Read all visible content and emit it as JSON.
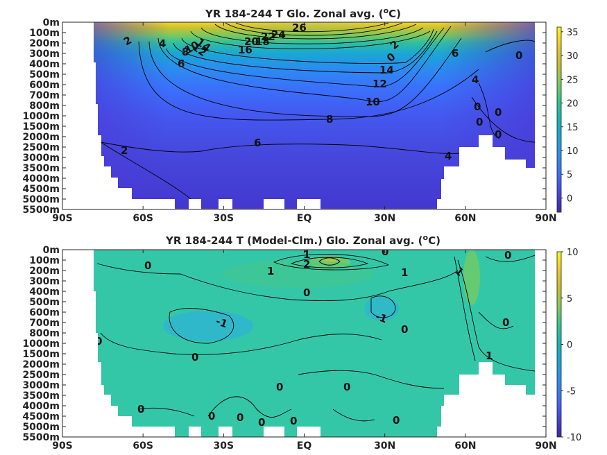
{
  "chart_data": [
    {
      "type": "heatmap",
      "title": "YR 184-244 T Glo. Zonal avg. (",
      "title_sup": "o",
      "title_end": "C)",
      "x_ticks": [
        "90S",
        "60S",
        "30S",
        "EQ",
        "30N",
        "60N",
        "90N"
      ],
      "x_values": [
        -90,
        -60,
        -30,
        0,
        30,
        60,
        90
      ],
      "y_ticks": [
        "0m",
        "100m",
        "200m",
        "300m",
        "400m",
        "500m",
        "600m",
        "700m",
        "800m",
        "1000m",
        "1500m",
        "2000m",
        "2500m",
        "3000m",
        "3500m",
        "4000m",
        "4500m",
        "5000m",
        "5500m"
      ],
      "colorbar_ticks": [
        "35",
        "30",
        "25",
        "20",
        "15",
        "10",
        "5",
        "0"
      ],
      "colorbar_values": [
        35,
        30,
        25,
        20,
        15,
        10,
        5,
        0
      ],
      "colorbar_range": [
        -3,
        36
      ],
      "contour_labels": [
        "26",
        "24",
        "22",
        "20",
        "18",
        "16",
        "14",
        "12",
        "10",
        "8",
        "6",
        "4",
        "2",
        "0",
        "14",
        "12",
        "10",
        "8",
        "6",
        "4",
        "6",
        "4",
        "2",
        "2",
        "0",
        "0",
        "0",
        "0",
        "0"
      ],
      "colormap": [
        "#3e26a8",
        "#4743e0",
        "#3f6bfb",
        "#2c8df0",
        "#1aa4da",
        "#0fb8b4",
        "#31c58e",
        "#7fcb5a",
        "#c2c12d",
        "#f5c52a",
        "#f9fb15"
      ]
    },
    {
      "type": "heatmap",
      "title": "YR 184-244 T (Model-Clm.) Glo. Zonal avg. (",
      "title_sup": "o",
      "title_end": "C)",
      "x_ticks": [
        "90S",
        "60S",
        "30S",
        "EQ",
        "30N",
        "60N",
        "90N"
      ],
      "x_values": [
        -90,
        -60,
        -30,
        0,
        30,
        60,
        90
      ],
      "y_ticks": [
        "0m",
        "100m",
        "200m",
        "300m",
        "400m",
        "500m",
        "600m",
        "700m",
        "800m",
        "1000m",
        "1500m",
        "2000m",
        "2500m",
        "3000m",
        "3500m",
        "4000m",
        "4500m",
        "5000m",
        "5500m"
      ],
      "colorbar_ticks": [
        "10",
        "5",
        "0",
        "-5",
        "-10"
      ],
      "colorbar_values": [
        10,
        5,
        0,
        -5,
        -10
      ],
      "colorbar_range": [
        -10,
        10
      ],
      "contour_labels": [
        "1",
        "2",
        "0",
        "0",
        "1",
        "1",
        "1",
        "0",
        "-1",
        "-1",
        "0",
        "0",
        "0",
        "0",
        "1",
        "0",
        "0",
        "0",
        "0",
        "0",
        "0",
        "0",
        "0",
        "0"
      ]
    }
  ]
}
